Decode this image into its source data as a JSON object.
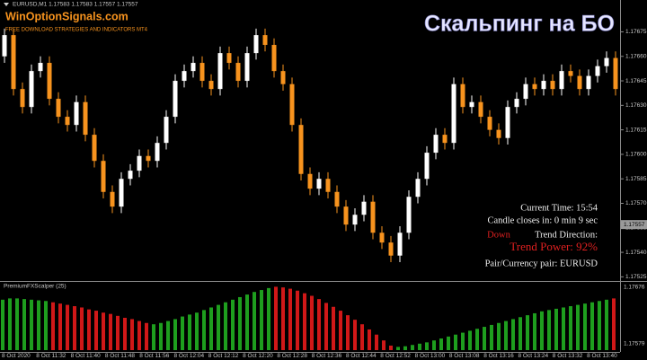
{
  "chart_data": {
    "type": "candlestick",
    "symbol_line": "EURUSD,M1 1.17583 1.17583 1.17557 1.17557",
    "brand": "WinOptionSignals.com",
    "brand_tagline": "FREE DOWNLOAD STRATEGIES AND INDICATORS MT4",
    "title": "Скальпинг на БО",
    "up_color": "#ffffff",
    "down_color": "#f7931e",
    "open": [
      1.1766,
      1.17673,
      1.1764,
      1.17629,
      1.17651,
      1.17656,
      1.17634,
      1.17623,
      1.17618,
      1.17632,
      1.17612,
      1.17596,
      1.17577,
      1.17568,
      1.17585,
      1.1759,
      1.17599,
      1.17596,
      1.17607,
      1.17623,
      1.17645,
      1.17651,
      1.17656,
      1.17645,
      1.1764,
      1.17662,
      1.17656,
      1.17645,
      1.17662,
      1.17673,
      1.17667,
      1.17651,
      1.17643,
      1.17618,
      1.17588,
      1.17579,
      1.17585,
      1.17577,
      1.17568,
      1.17557,
      1.17563,
      1.17571,
      1.17552,
      1.17546,
      1.17538,
      1.17552,
      1.17574,
      1.17585,
      1.17601,
      1.17612,
      1.17607,
      1.17643,
      1.17629,
      1.17632,
      1.17623,
      1.17615,
      1.1761,
      1.17629,
      1.17634,
      1.17643,
      1.1764,
      1.17645,
      1.1764,
      1.17651,
      1.17648,
      1.1764,
      1.17648,
      1.17654,
      1.17659
    ],
    "high": [
      1.17677,
      1.17677,
      1.17644,
      1.17655,
      1.1766,
      1.1766,
      1.17638,
      1.17627,
      1.17636,
      1.17636,
      1.17616,
      1.176,
      1.17581,
      1.17589,
      1.17594,
      1.17603,
      1.17603,
      1.17611,
      1.17627,
      1.17649,
      1.17655,
      1.1766,
      1.1766,
      1.17649,
      1.17666,
      1.17666,
      1.1766,
      1.17666,
      1.17677,
      1.17677,
      1.17671,
      1.17655,
      1.17647,
      1.17622,
      1.17592,
      1.17589,
      1.17589,
      1.17581,
      1.17572,
      1.17567,
      1.17575,
      1.17575,
      1.17556,
      1.1755,
      1.17556,
      1.17578,
      1.17589,
      1.17605,
      1.17616,
      1.17616,
      1.17647,
      1.17647,
      1.17636,
      1.17636,
      1.17627,
      1.17619,
      1.17633,
      1.17638,
      1.17647,
      1.17647,
      1.17649,
      1.17649,
      1.17655,
      1.17655,
      1.17652,
      1.17652,
      1.17658,
      1.17663,
      1.17663
    ],
    "low": [
      1.17656,
      1.17636,
      1.17625,
      1.17625,
      1.17647,
      1.1763,
      1.17619,
      1.17614,
      1.17614,
      1.17608,
      1.17592,
      1.17573,
      1.17564,
      1.17564,
      1.17581,
      1.17586,
      1.17592,
      1.17592,
      1.17603,
      1.17619,
      1.17641,
      1.17647,
      1.17641,
      1.17636,
      1.17636,
      1.17652,
      1.17641,
      1.17641,
      1.17658,
      1.17663,
      1.17647,
      1.17639,
      1.17614,
      1.17584,
      1.17575,
      1.17575,
      1.17573,
      1.17564,
      1.17553,
      1.17553,
      1.17559,
      1.17548,
      1.17542,
      1.17534,
      1.17534,
      1.17548,
      1.1757,
      1.17581,
      1.17597,
      1.17603,
      1.17603,
      1.17625,
      1.17625,
      1.17619,
      1.17611,
      1.17606,
      1.17606,
      1.17625,
      1.1763,
      1.17636,
      1.17636,
      1.17636,
      1.17636,
      1.17644,
      1.17636,
      1.17636,
      1.17644,
      1.1765,
      1.17636
    ],
    "close": [
      1.17673,
      1.1764,
      1.17629,
      1.17651,
      1.17656,
      1.17634,
      1.17623,
      1.17618,
      1.17632,
      1.17612,
      1.17596,
      1.17577,
      1.17568,
      1.17585,
      1.1759,
      1.17599,
      1.17596,
      1.17607,
      1.17623,
      1.17645,
      1.17651,
      1.17656,
      1.17645,
      1.1764,
      1.17662,
      1.17656,
      1.17645,
      1.17662,
      1.17673,
      1.17667,
      1.17651,
      1.17643,
      1.17618,
      1.17588,
      1.17579,
      1.17585,
      1.17577,
      1.17568,
      1.17557,
      1.17563,
      1.17571,
      1.17552,
      1.17546,
      1.17538,
      1.17552,
      1.17574,
      1.17585,
      1.17601,
      1.17612,
      1.17607,
      1.17643,
      1.17629,
      1.17632,
      1.17623,
      1.17615,
      1.1761,
      1.17629,
      1.17634,
      1.17643,
      1.1764,
      1.17645,
      1.1764,
      1.17651,
      1.17648,
      1.1764,
      1.17648,
      1.17654,
      1.17659,
      1.1764
    ],
    "ylim": [
      1.17523,
      1.17689
    ],
    "yticks": [
      1.17675,
      {
        "value": 1.1766,
        "label": "1.17660"
      },
      1.17645,
      {
        "value": 1.1763,
        "label": "1.17630"
      },
      1.17615,
      {
        "value": 1.176,
        "label": "1.17600"
      },
      1.17585,
      {
        "value": 1.1757,
        "label": "1.17570"
      },
      1.17555,
      {
        "value": 1.1754,
        "label": "1.17540"
      },
      1.17525
    ],
    "current_price": 1.17557,
    "xtick_labels": [
      "8 Oct 2020",
      "8 Oct 11:32",
      "8 Oct 11:40",
      "8 Oct 11:48",
      "8 Oct 11:56",
      "8 Oct 12:04",
      "8 Oct 12:12",
      "8 Oct 12:20",
      "8 Oct 12:28",
      "8 Oct 12:36",
      "8 Oct 12:44",
      "8 Oct 12:52",
      "8 Oct 13:00",
      "8 Oct 13:08",
      "8 Oct 13:16",
      "8 Oct 13:24",
      "8 Oct 13:32",
      "8 Oct 13:40"
    ],
    "info": {
      "current_time": "Current Time: 15:54",
      "candle_closes": "Candle closes in: 0 min 9 sec",
      "direction_value": "Down",
      "direction_label": "Trend Direction:",
      "trend_power": "Trend Power: 92%",
      "pair": "Pair/Currency pair: EURUSD"
    },
    "indicator": {
      "name": "PremiumFXScalper (25)",
      "axis_top": "1.17676",
      "axis_bottom": "1.17579",
      "ylim": [
        0,
        100
      ],
      "segments": [
        {
          "color": "#1e9e1e",
          "values": [
            78,
            80,
            80,
            79,
            78,
            77,
            76
          ]
        },
        {
          "color": "#d01818",
          "values": [
            74,
            72,
            70,
            68,
            66,
            63,
            61,
            58,
            56,
            53,
            50,
            48,
            45,
            42
          ]
        },
        {
          "color": "#1e9e1e",
          "values": [
            40,
            42,
            45,
            48,
            52,
            55,
            58,
            62,
            66,
            70,
            74,
            78,
            82,
            86,
            90,
            93,
            96
          ]
        },
        {
          "color": "#d01818",
          "values": [
            98,
            97,
            95,
            92,
            88,
            84,
            79,
            73,
            67,
            61,
            54,
            47,
            40,
            32,
            24,
            15,
            7
          ]
        },
        {
          "color": "#1e9e1e",
          "values": [
            5,
            6,
            8,
            10,
            12,
            15,
            18,
            21,
            24,
            27,
            30,
            33,
            36,
            39,
            42,
            45,
            48,
            51,
            54,
            57,
            60,
            62,
            64,
            66,
            68,
            70,
            72,
            74,
            76,
            78
          ]
        },
        {
          "color": "#d01818",
          "values": [
            80
          ]
        }
      ]
    }
  }
}
